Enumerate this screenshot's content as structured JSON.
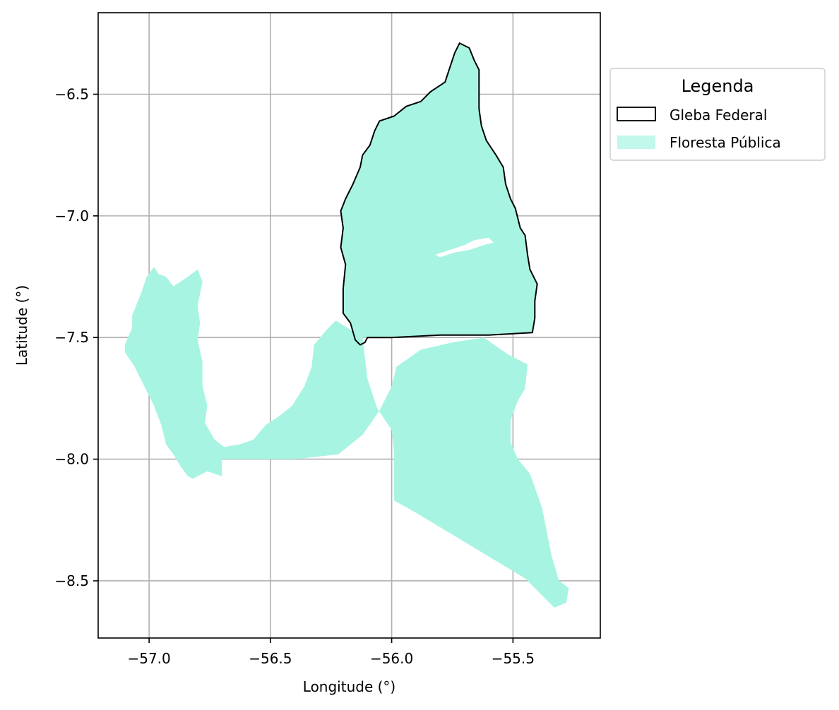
{
  "chart_data": {
    "type": "map",
    "xlabel": "Longitude (°)",
    "ylabel": "Latitude (°)",
    "xlim": [
      -57.21,
      -55.14
    ],
    "ylim": [
      -8.735,
      -6.165
    ],
    "x_ticks": [
      -57.0,
      -56.5,
      -56.0,
      -55.5
    ],
    "y_ticks": [
      -6.5,
      -7.0,
      -7.5,
      -8.0,
      -8.5
    ],
    "x_tick_labels": [
      "−57.0",
      "−56.5",
      "−56.0",
      "−55.5"
    ],
    "y_tick_labels": [
      "−6.5",
      "−7.0",
      "−7.5",
      "−8.0",
      "−8.5"
    ],
    "grid": true,
    "legend": {
      "title": "Legenda",
      "placement": "outside-right-top",
      "entries": [
        {
          "label": "Gleba Federal",
          "style": "outline",
          "edge_color": "#000000",
          "face_color": "none"
        },
        {
          "label": "Floresta Pública",
          "style": "fill",
          "face_color": "#A8F4E2"
        }
      ]
    },
    "colors": {
      "floresta_publica": "#A8F4E2",
      "gleba_federal_edge": "#000000",
      "grid": "#B0B0B0"
    },
    "series": [
      {
        "layer": "floresta_publica",
        "polygons": [
          [
            [
              -57.1,
              -7.53
            ],
            [
              -57.07,
              -7.46
            ],
            [
              -57.07,
              -7.41
            ],
            [
              -57.05,
              -7.36
            ],
            [
              -57.03,
              -7.31
            ],
            [
              -57.01,
              -7.25
            ],
            [
              -56.98,
              -7.21
            ],
            [
              -56.96,
              -7.24
            ],
            [
              -56.93,
              -7.25
            ],
            [
              -56.9,
              -7.29
            ],
            [
              -56.87,
              -7.27
            ],
            [
              -56.84,
              -7.25
            ],
            [
              -56.8,
              -7.22
            ],
            [
              -56.78,
              -7.27
            ],
            [
              -56.8,
              -7.37
            ],
            [
              -56.79,
              -7.44
            ],
            [
              -56.8,
              -7.51
            ],
            [
              -56.78,
              -7.6
            ],
            [
              -56.78,
              -7.7
            ],
            [
              -56.76,
              -7.78
            ],
            [
              -56.77,
              -7.85
            ],
            [
              -56.73,
              -7.92
            ],
            [
              -56.69,
              -7.95
            ],
            [
              -56.63,
              -7.94
            ],
            [
              -56.57,
              -7.92
            ],
            [
              -56.52,
              -7.86
            ],
            [
              -56.46,
              -7.82
            ],
            [
              -56.41,
              -7.78
            ],
            [
              -56.36,
              -7.7
            ],
            [
              -56.33,
              -7.62
            ],
            [
              -56.32,
              -7.53
            ],
            [
              -56.27,
              -7.47
            ],
            [
              -56.23,
              -7.43
            ],
            [
              -56.12,
              -7.5
            ],
            [
              -56.1,
              -7.67
            ],
            [
              -56.06,
              -7.79
            ],
            [
              -56.0,
              -7.88
            ],
            [
              -55.99,
              -7.97
            ],
            [
              -55.99,
              -8.17
            ],
            [
              -55.9,
              -8.22
            ],
            [
              -55.8,
              -8.28
            ],
            [
              -55.6,
              -8.4
            ],
            [
              -55.45,
              -8.49
            ],
            [
              -55.33,
              -8.61
            ],
            [
              -55.28,
              -8.59
            ],
            [
              -55.27,
              -8.53
            ],
            [
              -55.31,
              -8.5
            ],
            [
              -55.34,
              -8.4
            ],
            [
              -55.36,
              -8.3
            ],
            [
              -55.38,
              -8.2
            ],
            [
              -55.43,
              -8.06
            ],
            [
              -55.48,
              -8.0
            ],
            [
              -55.51,
              -7.93
            ],
            [
              -55.51,
              -7.84
            ],
            [
              -55.48,
              -7.76
            ],
            [
              -55.45,
              -7.71
            ],
            [
              -55.44,
              -7.61
            ],
            [
              -55.52,
              -7.57
            ],
            [
              -55.62,
              -7.5
            ],
            [
              -55.75,
              -7.52
            ],
            [
              -55.88,
              -7.55
            ],
            [
              -55.98,
              -7.62
            ],
            [
              -56.0,
              -7.7
            ],
            [
              -56.05,
              -7.8
            ],
            [
              -56.12,
              -7.9
            ],
            [
              -56.22,
              -7.98
            ],
            [
              -56.4,
              -8.0
            ],
            [
              -56.55,
              -8.0
            ],
            [
              -56.7,
              -8.0
            ],
            [
              -56.7,
              -8.07
            ],
            [
              -56.76,
              -8.05
            ],
            [
              -56.82,
              -8.08
            ],
            [
              -56.84,
              -8.07
            ],
            [
              -56.87,
              -8.03
            ],
            [
              -56.9,
              -7.98
            ],
            [
              -56.93,
              -7.94
            ],
            [
              -56.95,
              -7.86
            ],
            [
              -56.98,
              -7.78
            ],
            [
              -57.02,
              -7.7
            ],
            [
              -57.06,
              -7.62
            ],
            [
              -57.1,
              -7.56
            ]
          ],
          [
            [
              -56.13,
              -7.53
            ],
            [
              -56.15,
              -7.51
            ],
            [
              -56.17,
              -7.44
            ],
            [
              -56.2,
              -7.4
            ],
            [
              -56.2,
              -7.3
            ],
            [
              -56.19,
              -7.2
            ],
            [
              -56.21,
              -7.13
            ],
            [
              -56.2,
              -7.05
            ],
            [
              -56.21,
              -6.98
            ],
            [
              -56.19,
              -6.93
            ],
            [
              -56.16,
              -6.87
            ],
            [
              -56.13,
              -6.8
            ],
            [
              -56.12,
              -6.75
            ],
            [
              -56.09,
              -6.71
            ],
            [
              -56.07,
              -6.65
            ],
            [
              -56.05,
              -6.61
            ],
            [
              -55.99,
              -6.59
            ],
            [
              -55.94,
              -6.55
            ],
            [
              -55.88,
              -6.53
            ],
            [
              -55.84,
              -6.49
            ],
            [
              -55.78,
              -6.45
            ],
            [
              -55.76,
              -6.39
            ],
            [
              -55.74,
              -6.33
            ],
            [
              -55.72,
              -6.29
            ],
            [
              -55.68,
              -6.31
            ],
            [
              -55.66,
              -6.36
            ],
            [
              -55.64,
              -6.4
            ],
            [
              -55.64,
              -6.48
            ],
            [
              -55.64,
              -6.56
            ],
            [
              -55.63,
              -6.63
            ],
            [
              -55.61,
              -6.69
            ],
            [
              -55.57,
              -6.75
            ],
            [
              -55.54,
              -6.8
            ],
            [
              -55.53,
              -6.87
            ],
            [
              -55.51,
              -6.93
            ],
            [
              -55.49,
              -6.97
            ],
            [
              -55.47,
              -7.05
            ],
            [
              -55.45,
              -7.08
            ],
            [
              -55.44,
              -7.16
            ],
            [
              -55.43,
              -7.22
            ],
            [
              -55.4,
              -7.28
            ],
            [
              -55.41,
              -7.35
            ],
            [
              -55.41,
              -7.42
            ],
            [
              -55.42,
              -7.48
            ],
            [
              -55.6,
              -7.49
            ],
            [
              -55.8,
              -7.49
            ],
            [
              -56.0,
              -7.5
            ],
            [
              -56.13,
              -7.5
            ]
          ]
        ]
      },
      {
        "layer": "gleba_federal",
        "polygons": [
          [
            [
              -56.13,
              -7.53
            ],
            [
              -56.15,
              -7.51
            ],
            [
              -56.17,
              -7.44
            ],
            [
              -56.2,
              -7.4
            ],
            [
              -56.2,
              -7.3
            ],
            [
              -56.19,
              -7.2
            ],
            [
              -56.21,
              -7.13
            ],
            [
              -56.2,
              -7.05
            ],
            [
              -56.21,
              -6.98
            ],
            [
              -56.19,
              -6.93
            ],
            [
              -56.16,
              -6.87
            ],
            [
              -56.13,
              -6.8
            ],
            [
              -56.12,
              -6.75
            ],
            [
              -56.09,
              -6.71
            ],
            [
              -56.07,
              -6.65
            ],
            [
              -56.05,
              -6.61
            ],
            [
              -55.99,
              -6.59
            ],
            [
              -55.94,
              -6.55
            ],
            [
              -55.88,
              -6.53
            ],
            [
              -55.84,
              -6.49
            ],
            [
              -55.78,
              -6.45
            ],
            [
              -55.76,
              -6.39
            ],
            [
              -55.74,
              -6.33
            ],
            [
              -55.72,
              -6.29
            ],
            [
              -55.68,
              -6.31
            ],
            [
              -55.66,
              -6.36
            ],
            [
              -55.64,
              -6.4
            ],
            [
              -55.64,
              -6.48
            ],
            [
              -55.64,
              -6.56
            ],
            [
              -55.63,
              -6.63
            ],
            [
              -55.61,
              -6.69
            ],
            [
              -55.57,
              -6.75
            ],
            [
              -55.54,
              -6.8
            ],
            [
              -55.53,
              -6.87
            ],
            [
              -55.51,
              -6.93
            ],
            [
              -55.49,
              -6.97
            ],
            [
              -55.47,
              -7.05
            ],
            [
              -55.45,
              -7.08
            ],
            [
              -55.44,
              -7.16
            ],
            [
              -55.43,
              -7.22
            ],
            [
              -55.4,
              -7.28
            ],
            [
              -55.41,
              -7.35
            ],
            [
              -55.41,
              -7.42
            ],
            [
              -55.42,
              -7.48
            ],
            [
              -55.6,
              -7.49
            ],
            [
              -55.8,
              -7.49
            ],
            [
              -56.0,
              -7.5
            ],
            [
              -56.1,
              -7.5
            ],
            [
              -56.11,
              -7.52
            ]
          ]
        ]
      }
    ]
  }
}
